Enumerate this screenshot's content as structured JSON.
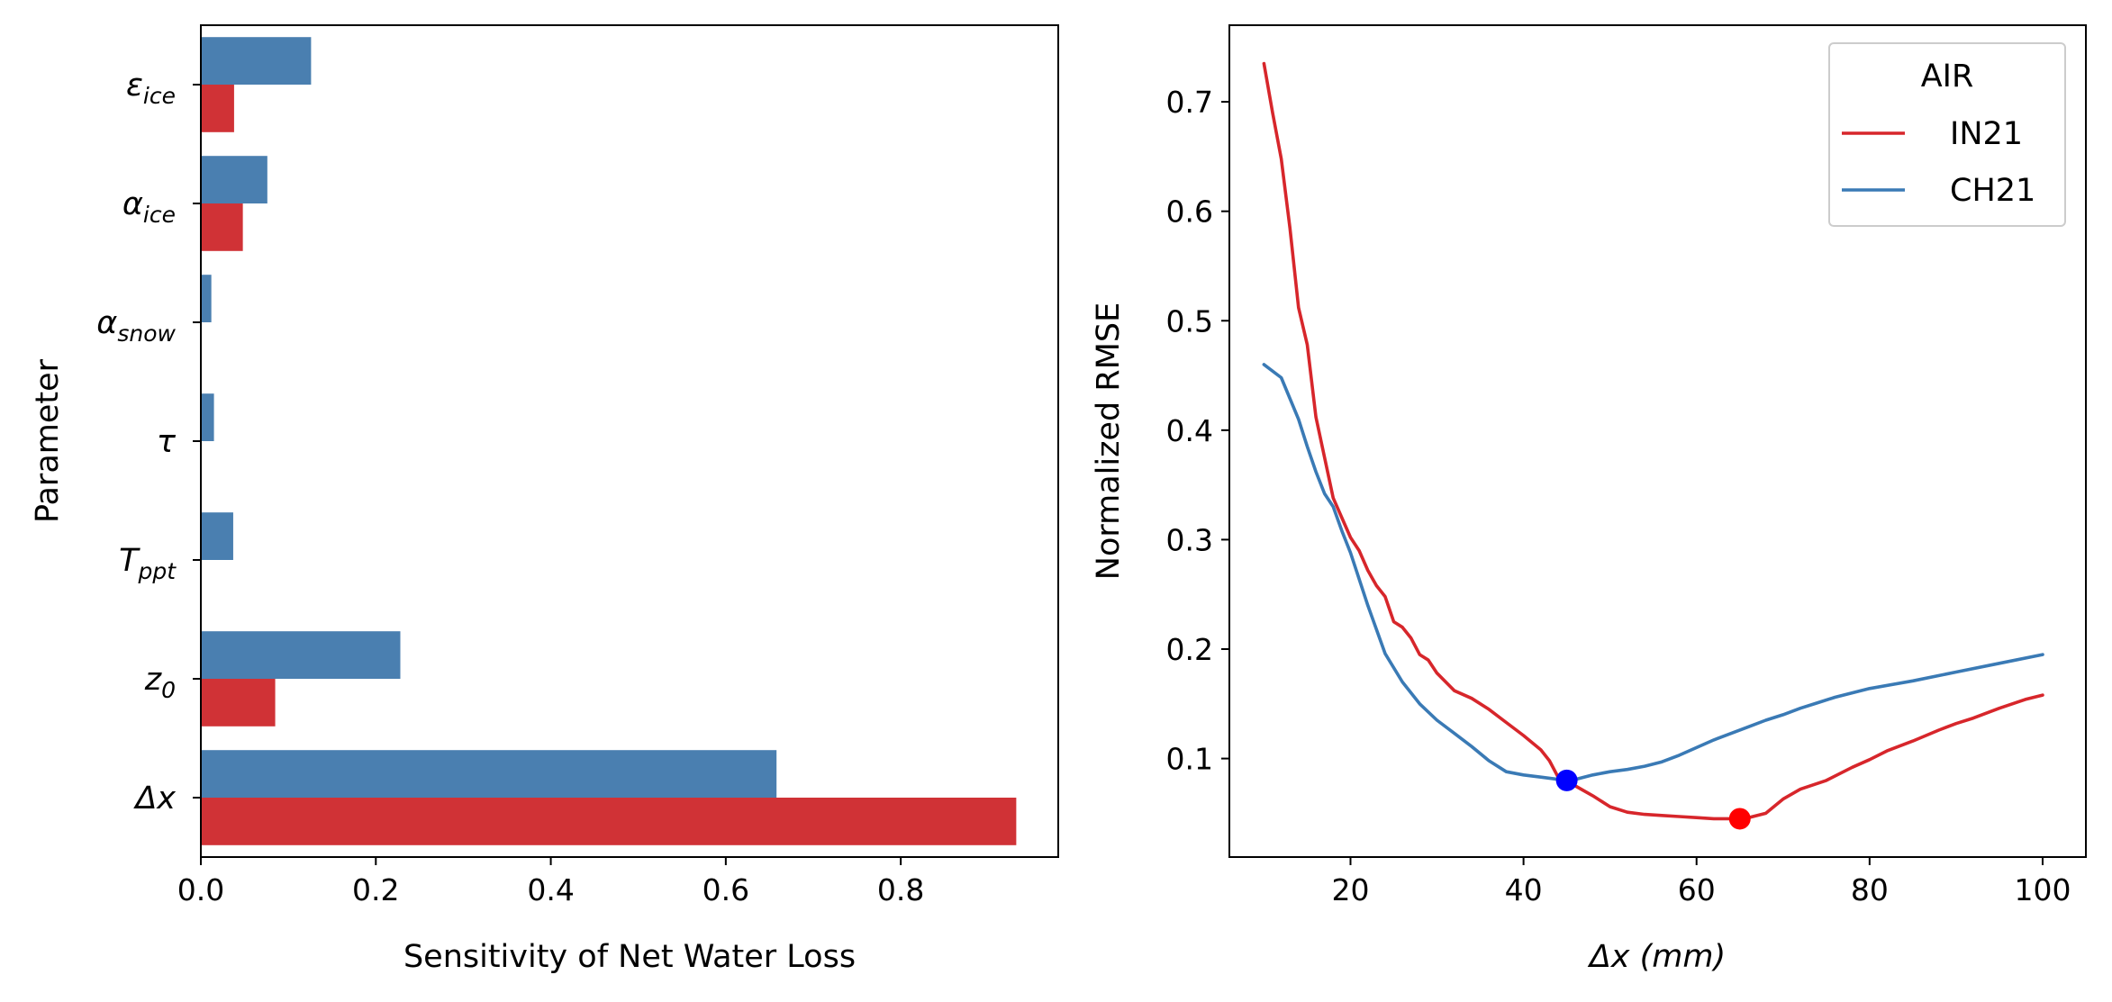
{
  "chart_data": [
    {
      "type": "bar",
      "orientation": "horizontal",
      "categories": [
        "εice",
        "αice",
        "αsnow",
        "τ",
        "Tppt",
        "z0",
        "Δx"
      ],
      "category_labels": [
        {
          "main": "ε",
          "sub": "ice"
        },
        {
          "main": "α",
          "sub": "ice"
        },
        {
          "main": "α",
          "sub": "snow"
        },
        {
          "main": "τ",
          "sub": ""
        },
        {
          "main": "T",
          "sub": "ppt"
        },
        {
          "main": "z",
          "sub": "0"
        },
        {
          "main": "Δx",
          "sub": ""
        }
      ],
      "series": [
        {
          "color": "#4a7fb0",
          "values": [
            0.126,
            0.076,
            0.012,
            0.015,
            0.037,
            0.228,
            0.658
          ]
        },
        {
          "color": "#d03236",
          "values": [
            0.038,
            0.048,
            0.0,
            0.0,
            0.0,
            0.085,
            0.932
          ]
        }
      ],
      "xlabel": "Sensitivity of Net Water Loss",
      "ylabel": "Parameter",
      "xlim": [
        0,
        0.98
      ],
      "xticks": [
        0.0,
        0.2,
        0.4,
        0.6,
        0.8
      ],
      "xtick_labels": [
        "0.0",
        "0.2",
        "0.4",
        "0.6",
        "0.8"
      ],
      "grid": false
    },
    {
      "type": "line",
      "xlabel_main": "Δx",
      "xlabel_unit": "(mm)",
      "ylabel": "Normalized RMSE",
      "xlim": [
        6,
        105
      ],
      "ylim": [
        0.01,
        0.77
      ],
      "xticks": [
        20,
        40,
        60,
        80,
        100
      ],
      "xtick_labels": [
        "20",
        "40",
        "60",
        "80",
        "100"
      ],
      "yticks": [
        0.1,
        0.2,
        0.3,
        0.4,
        0.5,
        0.6,
        0.7
      ],
      "ytick_labels": [
        "0.1",
        "0.2",
        "0.3",
        "0.4",
        "0.5",
        "0.6",
        "0.7"
      ],
      "legend": {
        "title": "AIR",
        "placement": "top-right"
      },
      "grid": false,
      "series": [
        {
          "name": "IN21",
          "color": "#d7262b",
          "x": [
            10,
            11,
            12,
            13,
            14,
            15,
            16,
            17,
            18,
            19,
            20,
            21,
            22,
            23,
            24,
            25,
            26,
            27,
            28,
            29,
            30,
            32,
            34,
            36,
            38,
            40,
            42,
            43,
            44,
            45,
            46,
            48,
            50,
            52,
            54,
            56,
            58,
            60,
            62,
            64,
            65,
            66,
            68,
            70,
            72,
            75,
            78,
            80,
            82,
            85,
            88,
            90,
            92,
            95,
            98,
            100
          ],
          "y": [
            0.735,
            0.69,
            0.648,
            0.585,
            0.512,
            0.478,
            0.412,
            0.375,
            0.338,
            0.32,
            0.302,
            0.29,
            0.272,
            0.258,
            0.248,
            0.225,
            0.22,
            0.21,
            0.195,
            0.19,
            0.178,
            0.162,
            0.155,
            0.145,
            0.133,
            0.121,
            0.108,
            0.098,
            0.083,
            0.08,
            0.075,
            0.066,
            0.056,
            0.051,
            0.049,
            0.048,
            0.047,
            0.046,
            0.045,
            0.045,
            0.045,
            0.046,
            0.05,
            0.063,
            0.072,
            0.08,
            0.092,
            0.099,
            0.107,
            0.116,
            0.126,
            0.132,
            0.137,
            0.146,
            0.154,
            0.158
          ]
        },
        {
          "name": "CH21",
          "color": "#3a7ab5",
          "x": [
            10,
            12,
            14,
            15,
            16,
            17,
            18,
            19,
            20,
            22,
            24,
            26,
            28,
            30,
            32,
            34,
            36,
            38,
            40,
            42,
            44,
            45,
            46,
            48,
            50,
            52,
            54,
            56,
            58,
            60,
            62,
            64,
            66,
            68,
            70,
            72,
            74,
            76,
            78,
            80,
            85,
            90,
            95,
            100
          ],
          "y": [
            0.46,
            0.448,
            0.41,
            0.385,
            0.362,
            0.342,
            0.33,
            0.308,
            0.288,
            0.24,
            0.196,
            0.17,
            0.15,
            0.135,
            0.123,
            0.111,
            0.098,
            0.088,
            0.085,
            0.083,
            0.081,
            0.08,
            0.081,
            0.085,
            0.088,
            0.09,
            0.093,
            0.097,
            0.103,
            0.11,
            0.117,
            0.123,
            0.129,
            0.135,
            0.14,
            0.146,
            0.151,
            0.156,
            0.16,
            0.164,
            0.171,
            0.179,
            0.187,
            0.195
          ]
        }
      ],
      "markers": [
        {
          "series": "CH21",
          "x": 45,
          "y": 0.08,
          "color": "#0000ff"
        },
        {
          "series": "IN21",
          "x": 65,
          "y": 0.045,
          "color": "#ff0000"
        }
      ]
    }
  ]
}
